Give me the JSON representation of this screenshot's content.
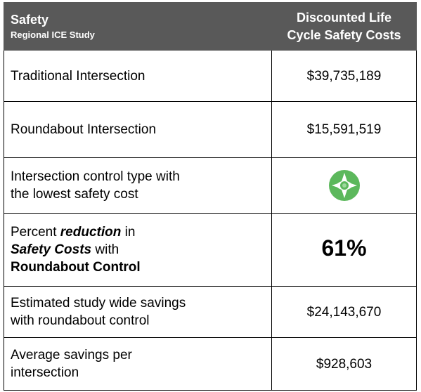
{
  "header": {
    "title": "Safety",
    "subtitle": "Regional ICE Study",
    "column": [
      "Discounted Life",
      "Cycle Safety Costs"
    ]
  },
  "rows": [
    {
      "label": [
        "Traditional Intersection"
      ],
      "value": "$39,735,189"
    },
    {
      "label": [
        "Roundabout Intersection"
      ],
      "value": "$15,591,519"
    },
    {
      "label": [
        "Intersection control type with",
        "the lowest safety cost"
      ],
      "icon": "roundabout"
    },
    {
      "label": [
        [
          {
            "text": "Percent "
          },
          {
            "text": "reduction",
            "style": "bold-italic"
          },
          {
            "text": " in"
          }
        ],
        [
          {
            "text": "Safety Costs",
            "style": "bold-italic"
          },
          {
            "text": " with"
          }
        ],
        [
          {
            "text": "Roundabout Control",
            "style": "bold"
          }
        ]
      ],
      "value": "61%",
      "emphasis": true
    },
    {
      "label": [
        "Estimated study wide savings",
        "with roundabout control"
      ],
      "value": "$24,143,670"
    },
    {
      "label": [
        "Average savings per",
        "intersection"
      ],
      "value": "$928,603"
    }
  ]
}
